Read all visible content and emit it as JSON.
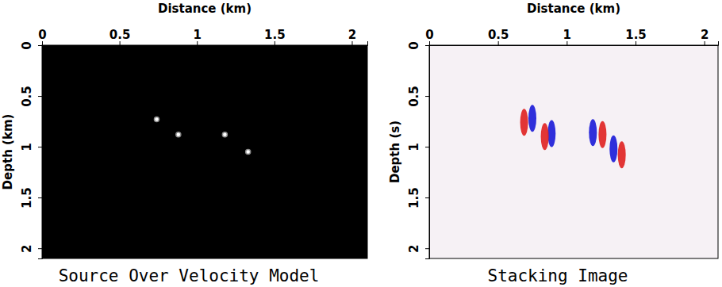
{
  "chart_data": [
    {
      "type": "scatter",
      "title": "Source Over Velocity Model",
      "x_label": "Distance (km)",
      "y_label": "Depth (km)",
      "x": [
        0.74,
        0.88,
        1.18,
        1.33
      ],
      "values": [
        0.73,
        0.88,
        0.88,
        1.05
      ],
      "color": "#ffffff",
      "marker": "circle",
      "xlim": [
        0,
        2.1
      ],
      "ylim": [
        0,
        2.1
      ],
      "xticks": [
        0,
        0.5,
        1,
        1.5,
        2
      ],
      "yticks": [
        0,
        0.5,
        1,
        1.5,
        2
      ]
    },
    {
      "type": "scatter",
      "title": "Stacking Image",
      "x_label": "Distance (km)",
      "y_label": "Depth (s)",
      "series": [
        {
          "color": "#1a1ad8",
          "x": [
            0.75,
            0.89,
            1.19,
            1.34
          ],
          "values": [
            0.72,
            0.87,
            0.86,
            1.02
          ]
        },
        {
          "color": "#e02020",
          "x": [
            0.69,
            0.84,
            1.26,
            1.4
          ],
          "values": [
            0.76,
            0.9,
            0.88,
            1.08
          ]
        }
      ],
      "marker": "ellipse",
      "xlim": [
        0,
        2.1
      ],
      "ylim": [
        0,
        2.1
      ],
      "xticks": [
        0,
        0.5,
        1,
        1.5,
        2
      ],
      "yticks": [
        0,
        0.5,
        1,
        1.5,
        2
      ]
    }
  ]
}
